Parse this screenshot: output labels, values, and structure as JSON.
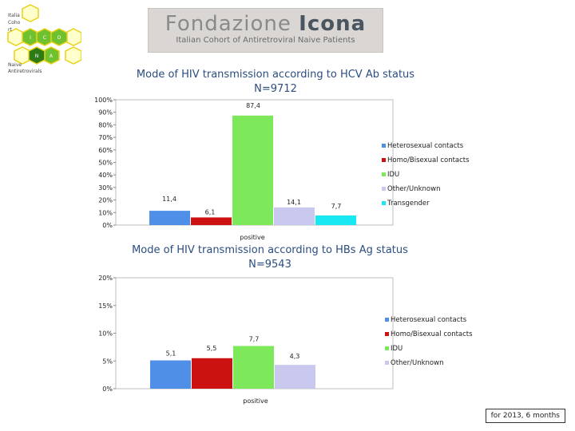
{
  "honeycomb_labels": [
    "Italia",
    "Coho",
    "rt",
    "N",
    "A"
  ],
  "honeycomb_cells": [
    "I",
    "C",
    "O",
    "N",
    "A"
  ],
  "honeycomb_caption": [
    "Naive",
    "Antiretrovirals"
  ],
  "logo": {
    "word1": "Fondazione",
    "word2": "Icona",
    "subtitle": "Italian Cohort of Antiretroviral Naive Patients"
  },
  "footer": "for 2013, 6 months",
  "colors": {
    "heterosexual": "#4f8fe8",
    "homo": "#cc1111",
    "idu": "#7de85a",
    "other": "#c9c9f0",
    "transgender": "#19e8f2"
  },
  "chart_data": [
    {
      "type": "bar",
      "title": "Mode of HIV transmission according to HCV Ab status",
      "subtitle": "N=9712",
      "categories": [
        "positive"
      ],
      "series": [
        {
          "name": "Heterosexual contacts",
          "values": [
            11.4
          ],
          "label": "11,4"
        },
        {
          "name": "Homo/Bisexual contacts",
          "values": [
            6.1
          ],
          "label": "6,1"
        },
        {
          "name": "IDU",
          "values": [
            87.4
          ],
          "label": "87,4"
        },
        {
          "name": "Other/Unknown",
          "values": [
            14.1
          ],
          "label": "14,1"
        },
        {
          "name": "Transgender",
          "values": [
            7.7
          ],
          "label": "7,7"
        }
      ],
      "ylim": [
        0,
        100
      ],
      "yticks": [
        "0%",
        "10%",
        "20%",
        "30%",
        "40%",
        "50%",
        "60%",
        "70%",
        "80%",
        "90%",
        "100%"
      ],
      "legend": "right"
    },
    {
      "type": "bar",
      "title": "Mode of HIV transmission according to HBs Ag status",
      "subtitle": "N=9543",
      "categories": [
        "positive"
      ],
      "series": [
        {
          "name": "Heterosexual contacts",
          "values": [
            5.1
          ],
          "label": "5,1"
        },
        {
          "name": "Homo/Bisexual contacts",
          "values": [
            5.5
          ],
          "label": "5,5"
        },
        {
          "name": "IDU",
          "values": [
            7.7
          ],
          "label": "7,7"
        },
        {
          "name": "Other/Unknown",
          "values": [
            4.3
          ],
          "label": "4,3"
        }
      ],
      "ylim": [
        0,
        20
      ],
      "yticks": [
        "0%",
        "5%",
        "10%",
        "15%",
        "20%"
      ],
      "legend": "right"
    }
  ]
}
